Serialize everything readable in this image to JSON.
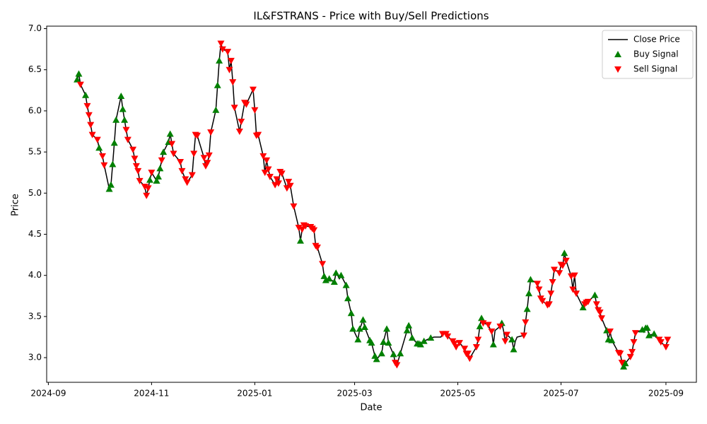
{
  "chart_data": {
    "type": "line",
    "title": "IL&FSTRANS - Price with Buy/Sell Predictions",
    "xlabel": "Date",
    "ylabel": "Price",
    "xlim": [
      "2024-08-31",
      "2025-09-19"
    ],
    "xticks": [
      "2024-09",
      "2024-11",
      "2025-01",
      "2025-03",
      "2025-05",
      "2025-07",
      "2025-09"
    ],
    "ylim": [
      2.7,
      7.03
    ],
    "yticks": [
      {
        "value": 3,
        "label": "3.0"
      },
      3.5,
      {
        "value": 4,
        "label": "4.0"
      },
      4.5,
      {
        "value": 5,
        "label": "5.0"
      },
      5.5,
      {
        "value": 6,
        "label": "6.0"
      },
      6.5,
      {
        "value": 7,
        "label": "7.0"
      }
    ],
    "grid": false,
    "legend": "upper right",
    "series": [
      {
        "name": "Close Price",
        "type": "line",
        "color": "#000000",
        "x": [
          "2024-09-18",
          "2024-09-19",
          "2024-09-20",
          "2024-09-23",
          "2024-09-24",
          "2024-09-25",
          "2024-09-26",
          "2024-09-27",
          "2024-09-30",
          "2024-10-01",
          "2024-10-03",
          "2024-10-04",
          "2024-10-07",
          "2024-10-08",
          "2024-10-09",
          "2024-10-10",
          "2024-10-11",
          "2024-10-14",
          "2024-10-15",
          "2024-10-16",
          "2024-10-17",
          "2024-10-18",
          "2024-10-21",
          "2024-10-22",
          "2024-10-23",
          "2024-10-24",
          "2024-10-25",
          "2024-10-28",
          "2024-10-29",
          "2024-10-30",
          "2024-10-31",
          "2024-11-01",
          "2024-11-04",
          "2024-11-05",
          "2024-11-06",
          "2024-11-07",
          "2024-11-08",
          "2024-11-11",
          "2024-11-12",
          "2024-11-13",
          "2024-11-14",
          "2024-11-18",
          "2024-11-19",
          "2024-11-21",
          "2024-11-22",
          "2024-11-25",
          "2024-11-26",
          "2024-11-27",
          "2024-11-28",
          "2024-12-02",
          "2024-12-03",
          "2024-12-04",
          "2024-12-05",
          "2024-12-06",
          "2024-12-09",
          "2024-12-10",
          "2024-12-11",
          "2024-12-12",
          "2024-12-13",
          "2024-12-16",
          "2024-12-17",
          "2024-12-18",
          "2024-12-19",
          "2024-12-20",
          "2024-12-23",
          "2024-12-24",
          "2024-12-26",
          "2024-12-27",
          "2024-12-31",
          "2025-01-01",
          "2025-01-02",
          "2025-01-03",
          "2025-01-06",
          "2025-01-07",
          "2025-01-08",
          "2025-01-09",
          "2025-01-10",
          "2025-01-13",
          "2025-01-14",
          "2025-01-15",
          "2025-01-16",
          "2025-01-17",
          "2025-01-20",
          "2025-01-21",
          "2025-01-22",
          "2025-01-24",
          "2025-01-27",
          "2025-01-28",
          "2025-01-29",
          "2025-01-30",
          "2025-01-31",
          "2025-02-03",
          "2025-02-04",
          "2025-02-05",
          "2025-02-06",
          "2025-02-07",
          "2025-02-10",
          "2025-02-11",
          "2025-02-12",
          "2025-02-14",
          "2025-02-17",
          "2025-02-18",
          "2025-02-19",
          "2025-02-20",
          "2025-02-21",
          "2025-02-24",
          "2025-02-25",
          "2025-02-27",
          "2025-02-28",
          "2025-03-03",
          "2025-03-04",
          "2025-03-05",
          "2025-03-06",
          "2025-03-07",
          "2025-03-10",
          "2025-03-11",
          "2025-03-13",
          "2025-03-14",
          "2025-03-17",
          "2025-03-18",
          "2025-03-20",
          "2025-03-21",
          "2025-03-24",
          "2025-03-25",
          "2025-03-26",
          "2025-03-28",
          "2025-04-01",
          "2025-04-02",
          "2025-04-03",
          "2025-04-04",
          "2025-04-07",
          "2025-04-08",
          "2025-04-09",
          "2025-04-11",
          "2025-04-15",
          "2025-04-17",
          "2025-04-21",
          "2025-04-22",
          "2025-04-24",
          "2025-04-25",
          "2025-04-28",
          "2025-04-29",
          "2025-04-30",
          "2025-05-02",
          "2025-05-05",
          "2025-05-06",
          "2025-05-07",
          "2025-05-08",
          "2025-05-12",
          "2025-05-13",
          "2025-05-14",
          "2025-05-15",
          "2025-05-16",
          "2025-05-19",
          "2025-05-20",
          "2025-05-21",
          "2025-05-22",
          "2025-05-23",
          "2025-05-26",
          "2025-05-27",
          "2025-05-28",
          "2025-05-29",
          "2025-05-30",
          "2025-06-02",
          "2025-06-03",
          "2025-06-04",
          "2025-06-05",
          "2025-06-09",
          "2025-06-10",
          "2025-06-11",
          "2025-06-12",
          "2025-06-13",
          "2025-06-17",
          "2025-06-18",
          "2025-06-19",
          "2025-06-20",
          "2025-06-23",
          "2025-06-24",
          "2025-06-25",
          "2025-06-26",
          "2025-06-27",
          "2025-06-30",
          "2025-07-01",
          "2025-07-02",
          "2025-07-03",
          "2025-07-04",
          "2025-07-07",
          "2025-07-08",
          "2025-07-09",
          "2025-07-10",
          "2025-07-14",
          "2025-07-15",
          "2025-07-16",
          "2025-07-17",
          "2025-07-21",
          "2025-07-22",
          "2025-07-23",
          "2025-07-24",
          "2025-07-25",
          "2025-07-28",
          "2025-07-29",
          "2025-07-30",
          "2025-07-31",
          "2025-08-04",
          "2025-08-05",
          "2025-08-06",
          "2025-08-07",
          "2025-08-08",
          "2025-08-11",
          "2025-08-12",
          "2025-08-13",
          "2025-08-14",
          "2025-08-18",
          "2025-08-19",
          "2025-08-20",
          "2025-08-21",
          "2025-08-22",
          "2025-08-25",
          "2025-08-26",
          "2025-08-28",
          "2025-08-29",
          "2025-09-01",
          "2025-09-02"
        ],
        "values": [
          6.38,
          6.45,
          6.32,
          6.19,
          6.06,
          5.95,
          5.83,
          5.71,
          5.65,
          5.55,
          5.45,
          5.34,
          5.05,
          5.1,
          5.35,
          5.61,
          5.89,
          6.18,
          6.02,
          5.89,
          5.77,
          5.65,
          5.53,
          5.42,
          5.33,
          5.27,
          5.15,
          5.08,
          4.97,
          5.06,
          5.16,
          5.25,
          5.15,
          5.2,
          5.3,
          5.4,
          5.5,
          5.62,
          5.72,
          5.6,
          5.48,
          5.38,
          5.27,
          5.17,
          5.13,
          5.22,
          5.48,
          5.71,
          5.7,
          5.43,
          5.33,
          5.37,
          5.46,
          5.74,
          6.01,
          6.31,
          6.61,
          6.82,
          6.75,
          6.72,
          6.5,
          6.61,
          6.35,
          6.04,
          5.75,
          5.87,
          6.1,
          6.08,
          6.26,
          6.01,
          5.7,
          5.71,
          5.45,
          5.25,
          5.4,
          5.29,
          5.2,
          5.1,
          5.17,
          5.12,
          5.26,
          5.24,
          5.06,
          5.14,
          5.09,
          4.84,
          4.58,
          4.42,
          4.56,
          4.61,
          4.6,
          4.59,
          4.57,
          4.55,
          4.36,
          4.34,
          4.14,
          3.99,
          3.94,
          3.96,
          3.92,
          4.03,
          4.0,
          3.96,
          4.0,
          3.88,
          3.72,
          3.54,
          3.35,
          3.22,
          3.35,
          3.4,
          3.46,
          3.37,
          3.21,
          3.18,
          3.02,
          2.98,
          3.05,
          3.19,
          3.35,
          3.18,
          3.04,
          2.94,
          2.91,
          3.05,
          3.33,
          3.39,
          3.35,
          3.24,
          3.17,
          3.17,
          3.16,
          3.2,
          3.24,
          3.25,
          3.25,
          3.29,
          3.29,
          3.26,
          3.2,
          3.17,
          3.13,
          3.18,
          3.11,
          3.05,
          3.05,
          2.99,
          3.13,
          3.22,
          3.38,
          3.48,
          3.42,
          3.4,
          3.35,
          3.32,
          3.16,
          3.33,
          3.38,
          3.42,
          3.33,
          3.2,
          3.28,
          3.22,
          3.1,
          3.2,
          3.25,
          3.27,
          3.43,
          3.59,
          3.78,
          3.95,
          3.9,
          3.83,
          3.72,
          3.69,
          3.64,
          3.65,
          3.78,
          3.92,
          4.07,
          4.03,
          4.13,
          4.12,
          4.27,
          4.18,
          3.99,
          3.83,
          4.0,
          3.78,
          3.61,
          3.65,
          3.67,
          3.68,
          3.76,
          3.65,
          3.58,
          3.55,
          3.48,
          3.33,
          3.22,
          3.32,
          3.21,
          3.06,
          3.05,
          2.94,
          2.89,
          2.93,
          3.01,
          3.07,
          3.19,
          3.3,
          3.34,
          3.31,
          3.36,
          3.36,
          3.27,
          3.29,
          3.25,
          3.22,
          3.19,
          3.13,
          3.22
        ]
      },
      {
        "name": "Buy Signal",
        "type": "scatter",
        "marker": "triangle-up",
        "color": "#008000",
        "x": [
          "2024-09-18",
          "2024-09-19",
          "2024-09-23",
          "2024-10-01",
          "2024-10-07",
          "2024-10-08",
          "2024-10-09",
          "2024-10-10",
          "2024-10-11",
          "2024-10-14",
          "2024-10-15",
          "2024-10-16",
          "2024-10-31",
          "2024-11-04",
          "2024-11-05",
          "2024-11-06",
          "2024-11-08",
          "2024-11-11",
          "2024-11-12",
          "2024-12-09",
          "2024-12-10",
          "2024-12-11",
          "2025-01-28",
          "2025-02-11",
          "2025-02-12",
          "2025-02-14",
          "2025-02-17",
          "2025-02-18",
          "2025-02-21",
          "2025-02-24",
          "2025-02-25",
          "2025-02-27",
          "2025-02-28",
          "2025-03-03",
          "2025-03-04",
          "2025-03-06",
          "2025-03-07",
          "2025-03-10",
          "2025-03-11",
          "2025-03-13",
          "2025-03-14",
          "2025-03-17",
          "2025-03-18",
          "2025-03-20",
          "2025-03-21",
          "2025-03-24",
          "2025-03-28",
          "2025-04-01",
          "2025-04-02",
          "2025-04-04",
          "2025-04-07",
          "2025-04-08",
          "2025-04-09",
          "2025-04-11",
          "2025-04-15",
          "2025-05-14",
          "2025-05-15",
          "2025-05-22",
          "2025-05-27",
          "2025-06-02",
          "2025-06-03",
          "2025-06-11",
          "2025-06-12",
          "2025-06-13",
          "2025-07-03",
          "2025-07-14",
          "2025-07-21",
          "2025-07-28",
          "2025-07-29",
          "2025-07-31",
          "2025-08-07",
          "2025-08-08",
          "2025-08-18",
          "2025-08-20",
          "2025-08-21",
          "2025-08-22",
          "2025-08-25"
        ],
        "values": [
          6.38,
          6.45,
          6.19,
          5.55,
          5.05,
          5.1,
          5.35,
          5.61,
          5.89,
          6.18,
          6.02,
          5.89,
          5.16,
          5.15,
          5.2,
          5.3,
          5.5,
          5.62,
          5.72,
          6.01,
          6.31,
          6.61,
          4.42,
          3.99,
          3.94,
          3.96,
          3.92,
          4.03,
          4.0,
          3.88,
          3.72,
          3.54,
          3.35,
          3.22,
          3.35,
          3.46,
          3.37,
          3.21,
          3.18,
          3.02,
          2.98,
          3.05,
          3.19,
          3.35,
          3.18,
          3.04,
          3.05,
          3.33,
          3.39,
          3.24,
          3.17,
          3.17,
          3.16,
          3.2,
          3.24,
          3.38,
          3.48,
          3.16,
          3.42,
          3.22,
          3.1,
          3.59,
          3.78,
          3.95,
          4.27,
          3.61,
          3.76,
          3.33,
          3.22,
          3.21,
          2.89,
          2.93,
          3.34,
          3.36,
          3.36,
          3.27,
          3.29
        ]
      },
      {
        "name": "Sell Signal",
        "type": "scatter",
        "marker": "triangle-down",
        "color": "#ff0000",
        "x": [
          "2024-09-20",
          "2024-09-24",
          "2024-09-25",
          "2024-09-26",
          "2024-09-27",
          "2024-09-30",
          "2024-10-03",
          "2024-10-04",
          "2024-10-17",
          "2024-10-18",
          "2024-10-21",
          "2024-10-22",
          "2024-10-23",
          "2024-10-24",
          "2024-10-25",
          "2024-10-28",
          "2024-10-29",
          "2024-10-30",
          "2024-11-01",
          "2024-11-07",
          "2024-11-13",
          "2024-11-14",
          "2024-11-18",
          "2024-11-19",
          "2024-11-21",
          "2024-11-22",
          "2024-11-25",
          "2024-11-26",
          "2024-11-27",
          "2024-11-28",
          "2024-12-02",
          "2024-12-03",
          "2024-12-04",
          "2024-12-05",
          "2024-12-06",
          "2024-12-12",
          "2024-12-13",
          "2024-12-16",
          "2024-12-17",
          "2024-12-18",
          "2024-12-19",
          "2024-12-20",
          "2024-12-23",
          "2024-12-24",
          "2024-12-26",
          "2024-12-27",
          "2024-12-31",
          "2025-01-01",
          "2025-01-02",
          "2025-01-03",
          "2025-01-06",
          "2025-01-07",
          "2025-01-08",
          "2025-01-09",
          "2025-01-10",
          "2025-01-13",
          "2025-01-14",
          "2025-01-15",
          "2025-01-16",
          "2025-01-17",
          "2025-01-20",
          "2025-01-21",
          "2025-01-22",
          "2025-01-24",
          "2025-01-27",
          "2025-01-29",
          "2025-01-30",
          "2025-01-31",
          "2025-02-03",
          "2025-02-04",
          "2025-02-05",
          "2025-02-06",
          "2025-02-07",
          "2025-02-10",
          "2025-03-25",
          "2025-03-26",
          "2025-04-22",
          "2025-04-24",
          "2025-04-25",
          "2025-04-28",
          "2025-04-29",
          "2025-04-30",
          "2025-05-02",
          "2025-05-05",
          "2025-05-06",
          "2025-05-07",
          "2025-05-08",
          "2025-05-12",
          "2025-05-13",
          "2025-05-16",
          "2025-05-19",
          "2025-05-21",
          "2025-05-26",
          "2025-05-29",
          "2025-05-30",
          "2025-06-09",
          "2025-06-10",
          "2025-06-17",
          "2025-06-18",
          "2025-06-19",
          "2025-06-20",
          "2025-06-23",
          "2025-06-24",
          "2025-06-25",
          "2025-06-26",
          "2025-06-27",
          "2025-06-30",
          "2025-07-01",
          "2025-07-02",
          "2025-07-04",
          "2025-07-07",
          "2025-07-08",
          "2025-07-09",
          "2025-07-10",
          "2025-07-15",
          "2025-07-16",
          "2025-07-17",
          "2025-07-22",
          "2025-07-23",
          "2025-07-24",
          "2025-07-25",
          "2025-07-30",
          "2025-08-04",
          "2025-08-05",
          "2025-08-06",
          "2025-08-11",
          "2025-08-12",
          "2025-08-13",
          "2025-08-14",
          "2025-08-28",
          "2025-08-29",
          "2025-09-01",
          "2025-09-02"
        ],
        "values": [
          6.32,
          6.06,
          5.95,
          5.83,
          5.71,
          5.65,
          5.45,
          5.34,
          5.77,
          5.65,
          5.53,
          5.42,
          5.33,
          5.27,
          5.15,
          5.08,
          4.97,
          5.06,
          5.25,
          5.4,
          5.6,
          5.48,
          5.38,
          5.27,
          5.17,
          5.13,
          5.22,
          5.48,
          5.71,
          5.7,
          5.43,
          5.33,
          5.37,
          5.46,
          5.74,
          6.82,
          6.75,
          6.72,
          6.5,
          6.61,
          6.35,
          6.04,
          5.75,
          5.87,
          6.1,
          6.08,
          6.26,
          6.01,
          5.7,
          5.71,
          5.45,
          5.25,
          5.4,
          5.29,
          5.2,
          5.1,
          5.17,
          5.12,
          5.26,
          5.24,
          5.06,
          5.14,
          5.09,
          4.84,
          4.58,
          4.56,
          4.61,
          4.6,
          4.59,
          4.57,
          4.55,
          4.36,
          4.34,
          4.14,
          2.94,
          2.91,
          3.29,
          3.29,
          3.26,
          3.2,
          3.17,
          3.13,
          3.18,
          3.11,
          3.05,
          3.05,
          2.99,
          3.13,
          3.22,
          3.42,
          3.4,
          3.32,
          3.38,
          3.2,
          3.28,
          3.27,
          3.43,
          3.9,
          3.83,
          3.72,
          3.69,
          3.64,
          3.65,
          3.78,
          3.92,
          4.07,
          4.03,
          4.13,
          4.12,
          4.18,
          3.99,
          3.83,
          4.0,
          3.78,
          3.65,
          3.67,
          3.68,
          3.65,
          3.58,
          3.55,
          3.48,
          3.32,
          3.06,
          3.05,
          2.94,
          3.01,
          3.07,
          3.19,
          3.3,
          3.22,
          3.19,
          3.13,
          3.22
        ]
      }
    ]
  }
}
